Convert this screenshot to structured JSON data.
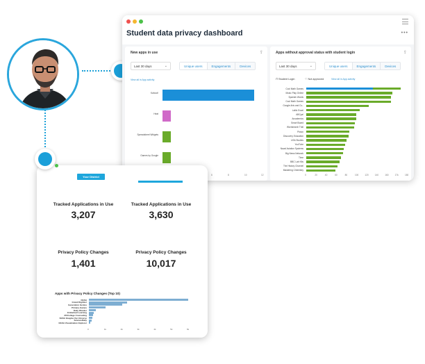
{
  "dashboard": {
    "title": "Student data privacy dashboard",
    "left_panel": {
      "title": "New apps in use",
      "range_select": "Last 30 days",
      "tabs": [
        "Unique users",
        "Engagements",
        "Devices"
      ],
      "view_all": "View all in App activity",
      "chart_data": {
        "type": "bar",
        "orientation": "horizontal",
        "categories": [
          "Kahoot!",
          "Heat",
          "Spreadsheet Widgets",
          "Games by Google"
        ],
        "values": [
          11,
          1,
          1,
          1
        ],
        "xlim": [
          0,
          12
        ],
        "xticks": [
          "0",
          "2",
          "4",
          "6",
          "8",
          "10",
          "12"
        ],
        "colors": [
          "#1b8fd8",
          "#d06ac8",
          "#6aab2a",
          "#6aab2a"
        ]
      }
    },
    "right_panel": {
      "title": "Apps without approval status with student login",
      "range_select": "Last 30 days",
      "tabs": [
        "Unique users",
        "Engagements",
        "Devices"
      ],
      "filters": [
        "Student Login",
        "Not approved"
      ],
      "view_all": "View all in App activity",
      "chart_data": {
        "type": "bar",
        "orientation": "horizontal",
        "stacked": true,
        "categories": [
          "Cool Math Games",
          "Music Play Online",
          "Spanish Words",
          "Cool Math Games",
          "Google Arts and Cu..",
          "Lalilo Excel",
          "ABCya!",
          "Arcademics",
          "Smart Board",
          "Wordsearch Trial",
          "Pixton",
          "Discovery Education",
          "USA Studies",
          "YouTube",
          "Naval Aviation Systems",
          "Big News Network",
          "Time",
          "BBC Lab Kits",
          "The History Channel",
          "Mastering Chemistry"
        ],
        "series": [
          {
            "values": [
              120,
              0,
              0,
              0,
              0,
              0,
              0,
              0,
              0,
              0,
              0,
              0,
              0,
              0,
              0,
              0,
              0,
              0,
              0,
              0
            ],
            "color": "#1b8fd8"
          },
          {
            "values": [
              50,
              155,
              152,
              152,
              112,
              96,
              90,
              90,
              88,
              86,
              78,
              76,
              72,
              70,
              68,
              66,
              62,
              60,
              56,
              52
            ],
            "color": "#6aab2a"
          }
        ],
        "xlim": [
          0,
          180
        ],
        "xticks": [
          "0",
          "20",
          "40",
          "60",
          "80",
          "100",
          "120",
          "140",
          "160",
          "17k",
          "180"
        ]
      }
    }
  },
  "district": {
    "tab_label": "Your District",
    "stats": [
      {
        "label": "Tracked Applications in Use",
        "value": "3,207"
      },
      {
        "label": "Tracked Applications in Use",
        "value": "3,630"
      },
      {
        "label": "Privacy Policy Changes",
        "value": "1,401"
      },
      {
        "label": "Privacy Policy Changes",
        "value": "10,017"
      }
    ],
    "chart_title": "Apps with Privacy Policy Changes (Top 10)",
    "chart_data": {
      "type": "bar",
      "orientation": "horizontal",
      "categories": [
        "NASA",
        "Grand Digitizer",
        "Generation Genius",
        "Primary Games",
        "Daily Wonder",
        "Embarked Learning",
        "AV/College Counseling",
        "NASA Imagine the Universe",
        "ScienceDaily",
        "NASA Visualization Explorer"
      ],
      "values": [
        6000,
        2300,
        2000,
        1000,
        400,
        300,
        250,
        200,
        150,
        100
      ],
      "xlim": [
        0,
        6000
      ],
      "xticks": [
        "0",
        "1k",
        "2k",
        "3k",
        "4k",
        "5k",
        "6k"
      ],
      "color": "#7eaed2"
    }
  }
}
